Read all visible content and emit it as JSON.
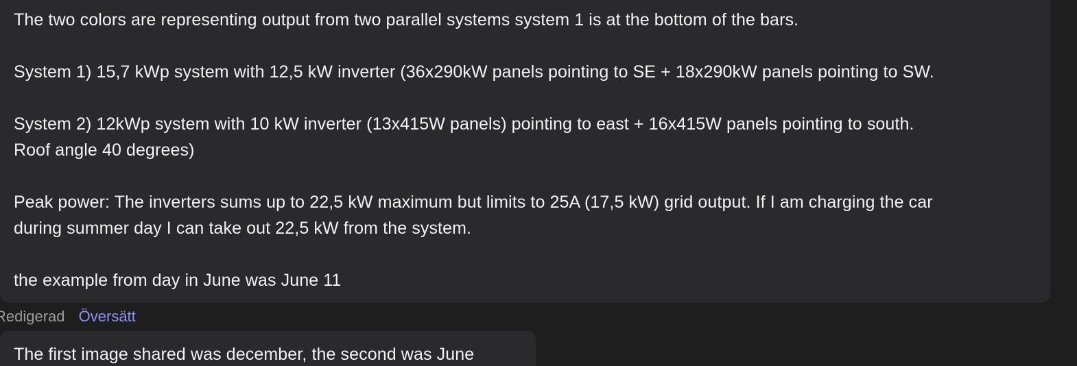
{
  "messages": [
    {
      "paragraphs": [
        [
          "The two colors are representing output from two parallel systems system 1 is at the bottom of the bars."
        ],
        [
          "System 1) 15,7 kWp system with 12,5 kW inverter (36x290kW panels pointing to SE + 18x290kW panels pointing to SW."
        ],
        [
          "System 2) 12kWp system with 10 kW inverter (13x415W panels) pointing to east + 16x415W panels pointing to south.",
          "Roof angle 40 degrees)"
        ],
        [
          "Peak power: The inverters sums up to 22,5 kW maximum but limits to 25A (17,5 kW) grid output. If I am charging the car",
          "during summer day I can take out 22,5 kW from the system."
        ],
        [
          "the example from day in June was June 11"
        ]
      ],
      "edited_label": "Redigerad",
      "translate_label": "Översätt"
    },
    {
      "paragraphs": [
        [
          "The first image shared was december, the second was June"
        ]
      ]
    }
  ],
  "colors": {
    "background": "#1e1e1f",
    "bubble": "#2a2a2c",
    "text": "#f2f2f3",
    "meta_text": "#9b9b9f",
    "link": "#8f8ff5"
  }
}
